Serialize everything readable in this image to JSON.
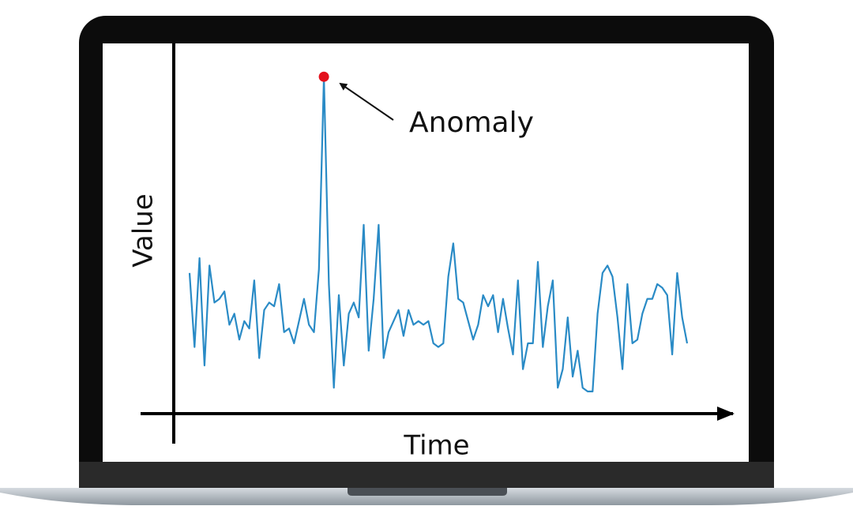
{
  "chart_data": {
    "type": "line",
    "axis_labels": {
      "y": "Value",
      "x": "Time"
    },
    "annotation": "Anomaly",
    "color": "#2a8bc6",
    "anomaly_color": "#e3101c",
    "ylim": [
      0,
      100
    ],
    "values": [
      38,
      18,
      42,
      13,
      40,
      30,
      31,
      33,
      24,
      27,
      20,
      25,
      23,
      36,
      15,
      28,
      30,
      29,
      35,
      22,
      23,
      19,
      25,
      31,
      24,
      22,
      39,
      91,
      35,
      7,
      32,
      13,
      27,
      30,
      26,
      51,
      17,
      31,
      51,
      15,
      22,
      25,
      28,
      21,
      28,
      24,
      25,
      24,
      25,
      19,
      18,
      19,
      37,
      46,
      31,
      30,
      25,
      20,
      24,
      32,
      29,
      32,
      22,
      31,
      23,
      16,
      36,
      12,
      19,
      19,
      41,
      18,
      29,
      36,
      7,
      12,
      26,
      10,
      17,
      7,
      6,
      6,
      27,
      38,
      40,
      37,
      26,
      12,
      35,
      19,
      20,
      27,
      31,
      31,
      35,
      34,
      32,
      16,
      38,
      26,
      19
    ]
  }
}
